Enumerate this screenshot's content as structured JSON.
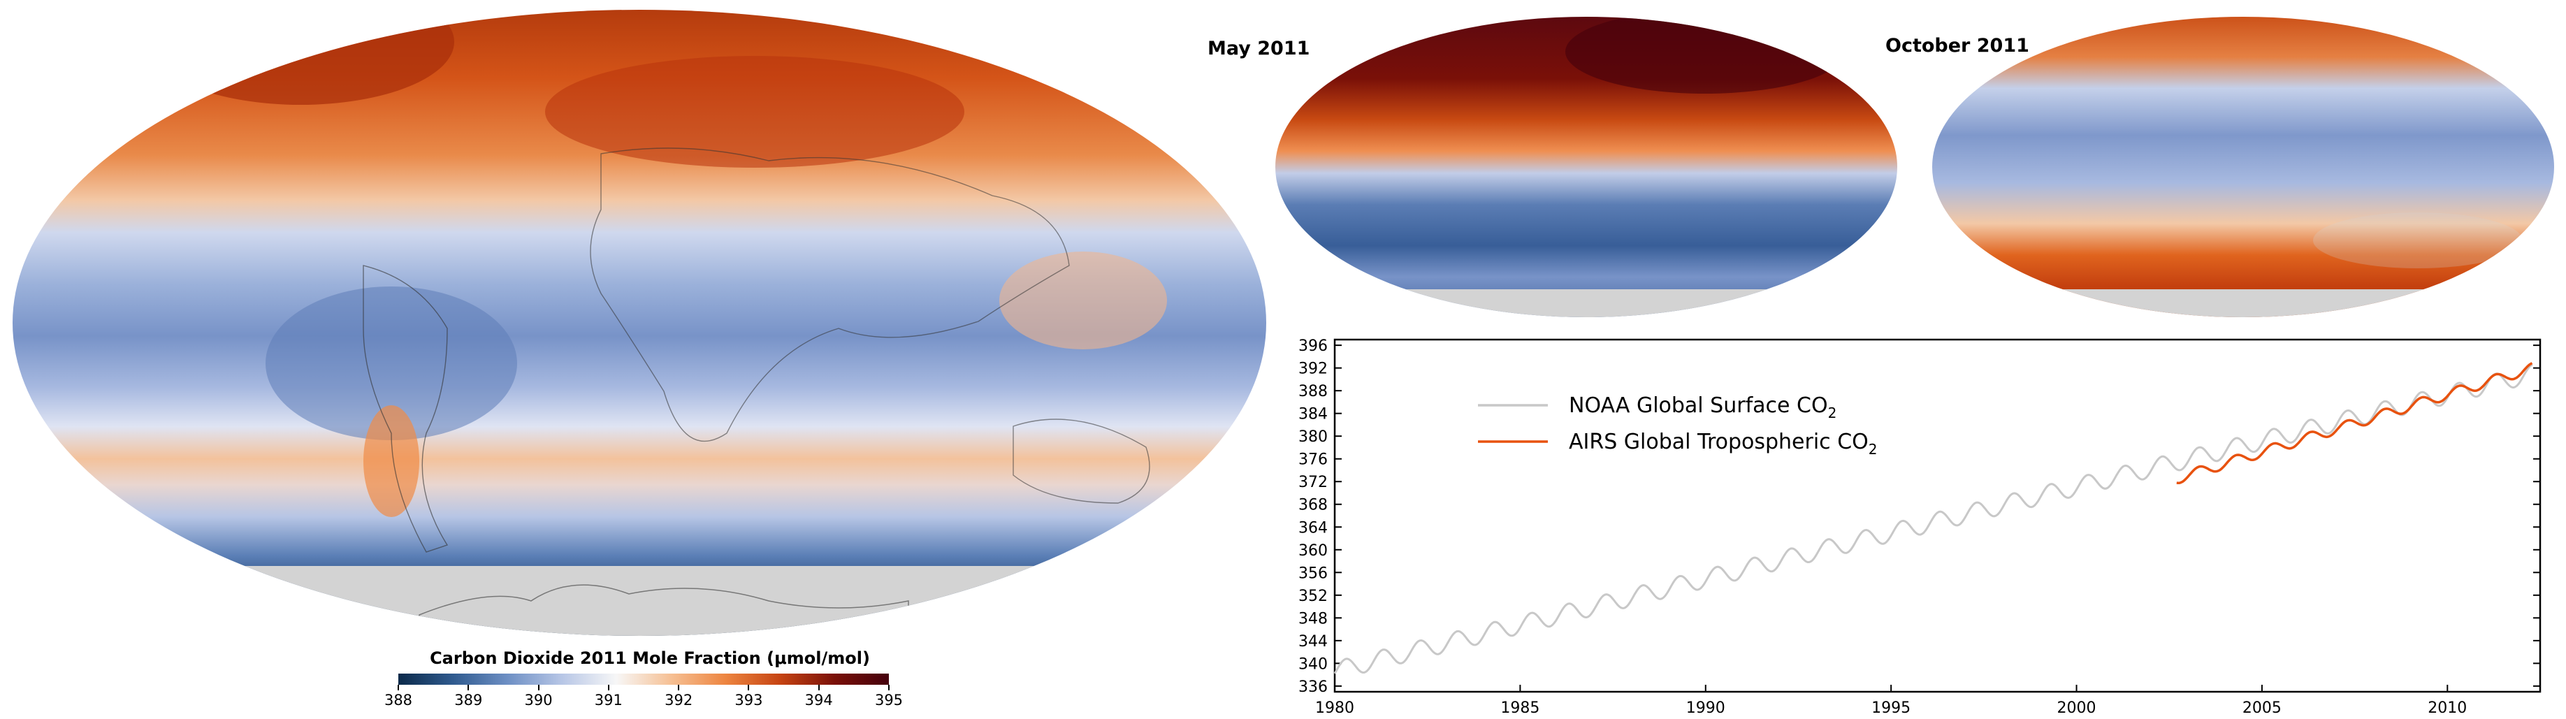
{
  "main_map": {
    "colorbar_title_prefix": "Carbon Dioxide 2011 Mole Fraction (",
    "colorbar_unit": "μmol/mol",
    "colorbar_title_suffix": ")",
    "colorbar_ticks": [
      "388",
      "389",
      "390",
      "391",
      "392",
      "393",
      "394",
      "395"
    ]
  },
  "inset_maps": [
    {
      "label": "May 2011"
    },
    {
      "label": "October 2011"
    }
  ],
  "colors": {
    "noaa_series": "#c8c8c8",
    "airs_series": "#e8520f",
    "colorbar_low": "#0b2a4a",
    "colorbar_mid": "#f7f7f7",
    "colorbar_high": "#45000c",
    "land_mask": "#d3d3d3"
  },
  "chart_data": {
    "type": "line",
    "title": "",
    "xlabel": "",
    "ylabel": "",
    "xlim": [
      1980,
      2012.5
    ],
    "ylim": [
      335,
      397
    ],
    "x_ticks": [
      "1980",
      "1985",
      "1990",
      "1995",
      "2000",
      "2005",
      "2010"
    ],
    "y_ticks": [
      "336",
      "340",
      "344",
      "348",
      "352",
      "356",
      "360",
      "364",
      "368",
      "372",
      "376",
      "380",
      "384",
      "388",
      "392",
      "396"
    ],
    "legend_position": "top-left",
    "series": [
      {
        "name": "NOAA Global Surface CO",
        "name_subscript": "2",
        "color": "#c8c8c8",
        "trend": {
          "x_start": 1980.0,
          "y_start": 338.7,
          "x_end": 2012.3,
          "y_end": 391.0
        },
        "seasonal_amplitude": 1.6
      },
      {
        "name": "AIRS Global Tropospheric CO",
        "name_subscript": "2",
        "color": "#e8520f",
        "trend": {
          "x_start": 2002.7,
          "y_start": 372.5,
          "x_end": 2012.3,
          "y_end": 392.0
        },
        "seasonal_amplitude": 0.9
      }
    ]
  }
}
